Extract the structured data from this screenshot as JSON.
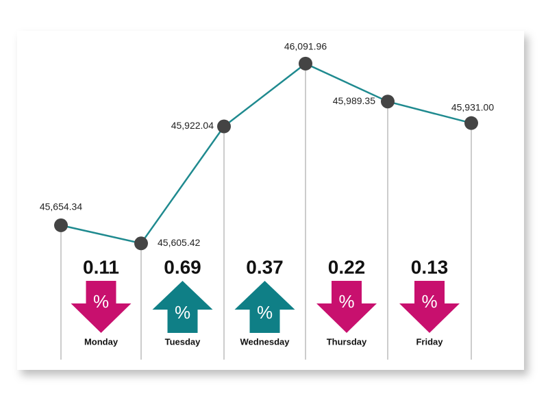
{
  "chart_data": {
    "type": "line",
    "categories": [
      null,
      null,
      null,
      null,
      null,
      null
    ],
    "series": [
      {
        "color": "#1f8a8f",
        "values": [
          45654.34,
          45605.42,
          45922.04,
          46091.96,
          45989.35,
          45931.0
        ],
        "value_labels": [
          "45,654.34",
          "45,605.42",
          "45,922.04",
          "46,091.96",
          "45,989.35",
          "45,931.00"
        ]
      }
    ],
    "ylim": [
      45300,
      46190
    ],
    "point_color": "#444444",
    "days": [
      {
        "name": "Monday",
        "change": 0.11,
        "direction": "down"
      },
      {
        "name": "Tuesday",
        "change": 0.69,
        "direction": "up"
      },
      {
        "name": "Wednesday",
        "change": 0.37,
        "direction": "up"
      },
      {
        "name": "Thursday",
        "change": 0.22,
        "direction": "down"
      },
      {
        "name": "Friday",
        "change": 0.13,
        "direction": "down"
      }
    ],
    "change_symbol": "%",
    "direction_colors": {
      "down": "#c8106e",
      "up": "#0f7f86"
    }
  }
}
